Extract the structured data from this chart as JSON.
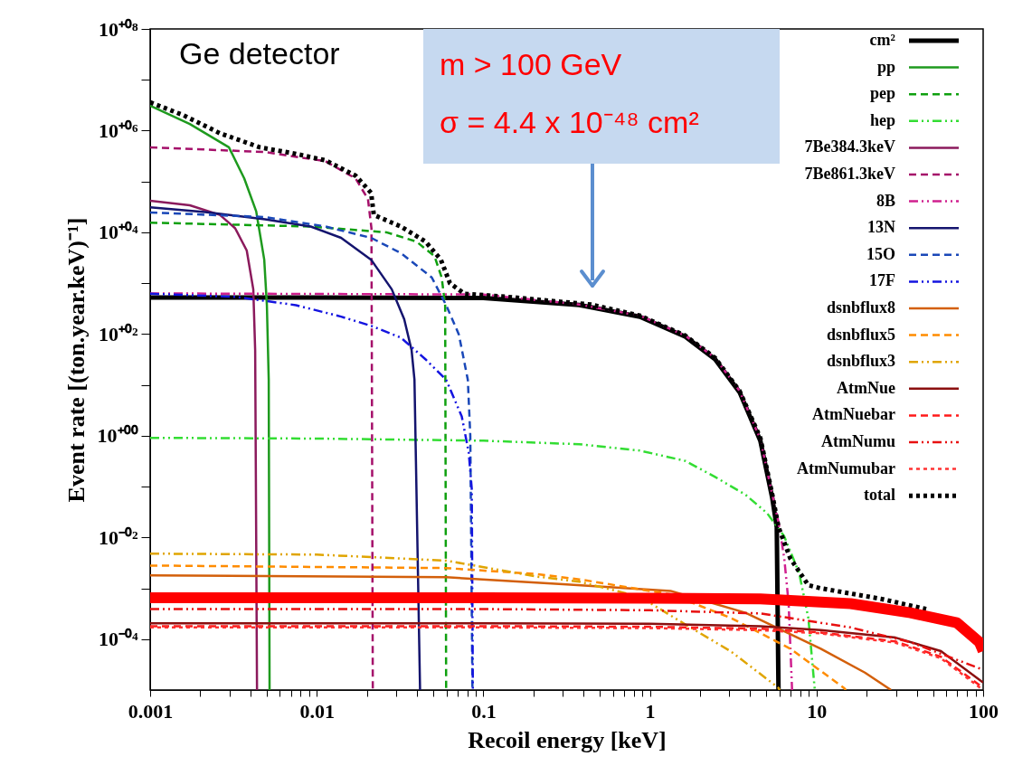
{
  "chart_data": {
    "type": "line",
    "xlabel": "Recoil energy [keV]",
    "ylabel": "Event rate [(ton.year.keV)⁻¹]",
    "annotations": [
      "Ge detector",
      "m > 100 GeV",
      "σ = 4.4 x 10⁻⁴⁸ cm²"
    ],
    "log": "xy",
    "grid": false,
    "legend": "top right",
    "marker": "none",
    "xlim": [
      0.001,
      100
    ],
    "ylim": [
      1e-05,
      100000000
    ],
    "xticks": [
      0.001,
      {
        "value": 0.002,
        "label": null
      },
      {
        "value": 0.003,
        "label": null
      },
      {
        "value": 0.004,
        "label": null
      },
      {
        "value": 0.005,
        "label": null
      },
      {
        "value": 0.006,
        "label": null
      },
      {
        "value": 0.007,
        "label": null
      },
      {
        "value": 0.008,
        "label": null
      },
      {
        "value": 0.009,
        "label": null
      },
      0.01,
      {
        "value": 0.02,
        "label": null
      },
      {
        "value": 0.03,
        "label": null
      },
      {
        "value": 0.04,
        "label": null
      },
      {
        "value": 0.05,
        "label": null
      },
      {
        "value": 0.06,
        "label": null
      },
      {
        "value": 0.07,
        "label": null
      },
      {
        "value": 0.08,
        "label": null
      },
      {
        "value": 0.09,
        "label": null
      },
      0.1,
      {
        "value": 0.2,
        "label": null
      },
      {
        "value": 0.3,
        "label": null
      },
      {
        "value": 0.4,
        "label": null
      },
      {
        "value": 0.5,
        "label": null
      },
      {
        "value": 0.6,
        "label": null
      },
      {
        "value": 0.7,
        "label": null
      },
      {
        "value": 0.8,
        "label": null
      },
      {
        "value": 0.9,
        "label": null
      },
      1,
      {
        "value": 2,
        "label": null
      },
      {
        "value": 3,
        "label": null
      },
      {
        "value": 4,
        "label": null
      },
      {
        "value": 5,
        "label": null
      },
      {
        "value": 6,
        "label": null
      },
      {
        "value": 7,
        "label": null
      },
      {
        "value": 8,
        "label": null
      },
      {
        "value": 9,
        "label": null
      },
      10,
      {
        "value": 20,
        "label": null
      },
      {
        "value": 30,
        "label": null
      },
      {
        "value": 40,
        "label": null
      },
      {
        "value": 50,
        "label": null
      },
      {
        "value": 60,
        "label": null
      },
      {
        "value": 70,
        "label": null
      },
      {
        "value": 80,
        "label": null
      },
      {
        "value": 90,
        "label": null
      },
      100
    ],
    "yticks": [
      {
        "value": 0.0001,
        "label": "10⁻⁰⁴"
      },
      {
        "value": 0.001,
        "label": null
      },
      {
        "value": 0.01,
        "label": "10⁻⁰²"
      },
      {
        "value": 0.1,
        "label": null
      },
      {
        "value": 1,
        "label": "10⁺⁰⁰"
      },
      {
        "value": 10,
        "label": null
      },
      {
        "value": 100,
        "label": "10⁺⁰²"
      },
      {
        "value": 1000,
        "label": null
      },
      {
        "value": 10000,
        "label": "10⁺⁰⁴"
      },
      {
        "value": 100000,
        "label": null
      },
      {
        "value": 1000000,
        "label": "10⁺⁰⁶"
      },
      {
        "value": 10000000,
        "label": null
      },
      {
        "value": 100000000,
        "label": "10⁺⁰⁸"
      }
    ],
    "series": [
      {
        "name": "cm²",
        "color": "#000000",
        "line_style": "solid",
        "x": [
          0.001,
          0.01,
          0.1,
          0.377,
          0.87,
          1.63,
          2.46,
          3.45,
          4.6,
          5.42,
          5.77,
          5.91
        ],
        "values": [
          525,
          525,
          510,
          372,
          219,
          89,
          32,
          7.2,
          0.79,
          0.06,
          0.016,
          1e-05
        ]
      },
      {
        "name": "pp",
        "color": "#1e9a1e",
        "line_style": "solid",
        "x": [
          0.001,
          0.00173,
          0.00297,
          0.00367,
          0.00433,
          0.00484,
          0.00502,
          0.00515,
          0.00521
        ],
        "values": [
          3100000,
          1350000,
          470000,
          115000,
          26000,
          2900,
          370,
          12.6,
          1e-05
        ]
      },
      {
        "name": "pep",
        "color": "#0fa00f",
        "line_style": "dashed",
        "x": [
          0.001,
          0.0092,
          0.0262,
          0.0396,
          0.0509,
          0.0562,
          0.059,
          0.0598
        ],
        "values": [
          15500,
          13000,
          10000,
          6600,
          3400,
          1300,
          370,
          1e-05
        ]
      },
      {
        "name": "hep",
        "color": "#33dd33",
        "line_style": "dashdot",
        "x": [
          0.001,
          0.01,
          0.1,
          0.377,
          0.87,
          1.63,
          2.46,
          3.75,
          5.05,
          6.4,
          7.86,
          8.93,
          9.76
        ],
        "values": [
          0.91,
          0.88,
          0.8,
          0.68,
          0.51,
          0.32,
          0.155,
          0.069,
          0.03,
          0.0105,
          0.002,
          0.00026,
          1e-05
        ]
      },
      {
        "name": "7Be384.3keV",
        "color": "#8b1a5c",
        "line_style": "solid",
        "x": [
          0.001,
          0.00173,
          0.00262,
          0.00324,
          0.0038,
          0.00416,
          0.00427,
          0.00438
        ],
        "values": [
          42000,
          34000,
          22000,
          12000,
          4400,
          760,
          48,
          1e-05
        ]
      },
      {
        "name": "7Be861.3keV",
        "color": "#a5106a",
        "line_style": "dashed",
        "x": [
          0.001,
          0.00489,
          0.0113,
          0.0171,
          0.0203,
          0.0213,
          0.0217
        ],
        "values": [
          470000,
          380000,
          250000,
          115000,
          45000,
          12000,
          1e-05
        ]
      },
      {
        "name": "8B",
        "color": "#d0208f",
        "line_style": "dashdot",
        "x": [
          0.001,
          0.1,
          0.377,
          0.87,
          1.63,
          2.46,
          3.45,
          4.6,
          5.42,
          5.91,
          6.4,
          6.8,
          7.13
        ],
        "values": [
          630,
          600,
          380,
          230,
          93,
          34,
          7.6,
          0.85,
          0.07,
          0.02,
          0.0039,
          0.0005,
          1e-05
        ]
      },
      {
        "name": "13N",
        "color": "#14146e",
        "line_style": "solid",
        "x": [
          0.001,
          0.00214,
          0.00489,
          0.0092,
          0.014,
          0.0212,
          0.0282,
          0.0335,
          0.0371,
          0.0386,
          0.0417
        ],
        "values": [
          31000,
          25000,
          18000,
          13000,
          7800,
          2900,
          760,
          195,
          48,
          12.6,
          1e-05
        ]
      },
      {
        "name": "15O",
        "color": "#1a48b8",
        "line_style": "dashed",
        "x": [
          0.001,
          0.00489,
          0.0113,
          0.0212,
          0.032,
          0.049,
          0.0598,
          0.0713,
          0.0807,
          0.0835,
          0.086
        ],
        "values": [
          24500,
          20000,
          13000,
          7800,
          3900,
          1300,
          370,
          98,
          12.6,
          1,
          1e-05
        ]
      },
      {
        "name": "17F",
        "color": "#1414e0",
        "line_style": "dashdot",
        "x": [
          0.001,
          0.00324,
          0.0075,
          0.014,
          0.0212,
          0.032,
          0.0449,
          0.0598,
          0.0742,
          0.0817,
          0.0852,
          0.0865
        ],
        "values": [
          620,
          540,
          370,
          220,
          145,
          85,
          32,
          12.6,
          2.4,
          0.47,
          0.09,
          1e-05
        ]
      },
      {
        "name": "dsnbflux8",
        "color": "#d35f0a",
        "line_style": "solid",
        "x": [
          0.001,
          0.0598,
          0.3,
          1.33,
          3.75,
          10.6,
          19.5,
          28
        ],
        "values": [
          0.0018,
          0.00165,
          0.0012,
          0.00089,
          0.00033,
          6.5e-05,
          2.2e-05,
          1e-05
        ]
      },
      {
        "name": "dsnbflux5",
        "color": "#ff8c00",
        "line_style": "dashed",
        "x": [
          0.001,
          0.0598,
          0.21,
          0.377,
          1.33,
          3.07,
          6.95,
          14.6,
          15
        ],
        "values": [
          0.0028,
          0.0025,
          0.0019,
          0.0015,
          0.00076,
          0.00026,
          6.5e-05,
          1.1e-05,
          1e-05
        ]
      },
      {
        "name": "dsnbflux3",
        "color": "#e0a500",
        "line_style": "dashdot",
        "x": [
          0.001,
          0.01,
          0.0598,
          0.21,
          0.377,
          0.87,
          1.63,
          3.07,
          5.91,
          6
        ],
        "values": [
          0.0048,
          0.0046,
          0.0035,
          0.0017,
          0.00135,
          0.00068,
          0.000195,
          5.7e-05,
          1.1e-05,
          1e-05
        ]
      },
      {
        "name": "AtmNue",
        "color": "#8b0f0f",
        "line_style": "solid",
        "x": [
          0.001,
          0.1,
          1,
          4.6,
          10.6,
          29.8,
          55.8,
          100
        ],
        "values": [
          0.000205,
          0.000205,
          0.0002,
          0.00018,
          0.00015,
          0.000107,
          5.8e-05,
          1.4e-05
        ]
      },
      {
        "name": "AtmNuebar",
        "color": "#ff1a1a",
        "line_style": "dashed",
        "x": [
          0.001,
          0.1,
          1,
          4.6,
          10.6,
          29.8,
          55.8,
          100
        ],
        "values": [
          0.00018,
          0.00018,
          0.000175,
          0.00016,
          0.000135,
          9e-05,
          4.5e-05,
          1.1e-05
        ]
      },
      {
        "name": "AtmNumu",
        "color": "#e81010",
        "line_style": "dashdot",
        "x": [
          0.001,
          0.1,
          1,
          4.6,
          16,
          36.6,
          100
        ],
        "values": [
          0.00039,
          0.00039,
          0.00037,
          0.00032,
          0.00017,
          8.7e-05,
          2.5e-05
        ]
      },
      {
        "name": "AtmNumubar",
        "color": "#ff3333",
        "line_style": "dotted",
        "x": [
          0.001,
          0.1,
          1,
          4.6,
          10.6,
          29.8,
          55.8,
          100
        ],
        "values": [
          0.00017,
          0.00017,
          0.000165,
          0.00015,
          0.00013,
          8.5e-05,
          4.2e-05,
          1e-05
        ]
      },
      {
        "name": "total",
        "color": "#000000",
        "line_style": "dotted",
        "x": [
          0.001,
          0.00159,
          0.00262,
          0.00455,
          0.0075,
          0.0113,
          0.0171,
          0.0212,
          0.022,
          0.032,
          0.0449,
          0.0556,
          0.063,
          0.077,
          0.138,
          0.443,
          0.87,
          1.63,
          2.46,
          3.45,
          4.6,
          5.42,
          5.91,
          6.95,
          8.93,
          10.6,
          24.3,
          45.5
        ],
        "values": [
          3600000,
          2000000,
          890000,
          470000,
          350000,
          260000,
          130000,
          60000,
          22000,
          13000,
          6600,
          2900,
          1000,
          620,
          540,
          380,
          230,
          93,
          34,
          7.6,
          0.9,
          0.07,
          0.016,
          0.0039,
          0.00115,
          0.001,
          0.00062,
          0.00039
        ]
      },
      {
        "color": "#ff0000",
        "line_style": "solid",
        "x": [
          0.001,
          0.1,
          1,
          4.6,
          16,
          36.6,
          69.5,
          95,
          100
        ],
        "values": [
          0.00065,
          0.00065,
          0.00064,
          0.00062,
          0.0005,
          0.00033,
          0.00021,
          8.7e-05,
          5.8e-05
        ]
      }
    ]
  }
}
